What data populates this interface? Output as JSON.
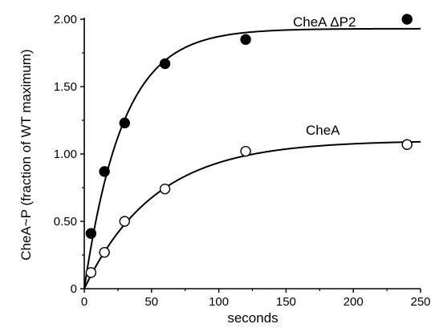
{
  "chart_data": {
    "type": "scatter",
    "title": "",
    "xlabel": "seconds",
    "ylabel": "CheA~P (fraction of WT maximum)",
    "xlim": [
      0,
      250
    ],
    "ylim": [
      0,
      2.0
    ],
    "x_ticks": [
      "0",
      "50",
      "100",
      "150",
      "200",
      "250"
    ],
    "y_ticks": [
      "0",
      "0.50",
      "1.00",
      "1.50",
      "2.00"
    ],
    "grid": false,
    "legend": "none",
    "series": [
      {
        "name": "CheA ΔP2",
        "marker": "filled-circle",
        "color": "#000000",
        "points": [
          [
            5,
            0.41
          ],
          [
            15,
            0.87
          ],
          [
            30,
            1.23
          ],
          [
            60,
            1.67
          ],
          [
            120,
            1.85
          ],
          [
            240,
            2.0
          ]
        ],
        "fit": {
          "model": "exponential-rise",
          "plateau": 1.93,
          "rate": 0.035
        }
      },
      {
        "name": "CheA",
        "marker": "open-circle",
        "color": "#000000",
        "points": [
          [
            5,
            0.12
          ],
          [
            15,
            0.27
          ],
          [
            30,
            0.5
          ],
          [
            60,
            0.74
          ],
          [
            120,
            1.02
          ],
          [
            240,
            1.07
          ]
        ],
        "fit": {
          "model": "exponential-rise",
          "plateau": 1.1,
          "rate": 0.019
        }
      }
    ]
  }
}
